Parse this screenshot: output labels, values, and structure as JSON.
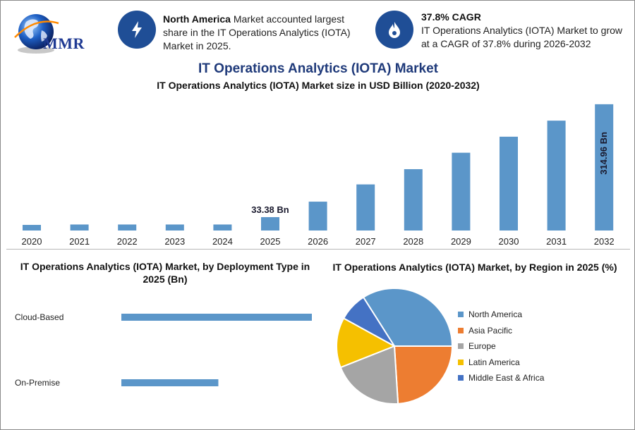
{
  "logo": {
    "text": "MMR"
  },
  "info_boxes": [
    {
      "icon": "lightning-bolt-icon",
      "bold": "North America",
      "text": " Market accounted largest share in the IT Operations Analytics (IOTA) Market in 2025."
    },
    {
      "icon": "flame-drop-icon",
      "bold": "37.8% CAGR",
      "text": "IT Operations Analytics (IOTA) Market to grow at a CAGR of 37.8% during 2026-2032"
    }
  ],
  "colors": {
    "bar": "#5b96c9",
    "icon_bg": "#1f4e96",
    "title": "#1f3a7a"
  },
  "chart_data": [
    {
      "type": "bar",
      "title": "IT Operations Analytics (IOTA) Market",
      "subtitle": "IT Operations Analytics (IOTA) Market size in USD Billion (2020-2032)",
      "categories": [
        "2020",
        "2021",
        "2022",
        "2023",
        "2024",
        "2025",
        "2026",
        "2027",
        "2028",
        "2029",
        "2030",
        "2031",
        "2032"
      ],
      "values": [
        14,
        15,
        15,
        15,
        15,
        33.38,
        72,
        115,
        153,
        194,
        234,
        274,
        314.96
      ],
      "data_labels": [
        {
          "index": 5,
          "text": "33.38 Bn"
        },
        {
          "index": 12,
          "text": "314.96 Bn"
        }
      ],
      "ylim": [
        0,
        320
      ],
      "grid": false
    },
    {
      "type": "bar",
      "orientation": "horizontal",
      "title": "IT Operations Analytics (IOTA) Market, by Deployment Type in 2025 (Bn)",
      "categories": [
        "Cloud-Based",
        "On-Premise"
      ],
      "values": [
        22.0,
        11.2
      ],
      "xlim": [
        0,
        22.0
      ]
    },
    {
      "type": "pie",
      "title": "IT Operations Analytics (IOTA) Market, by Region in 2025 (%)",
      "legend_position": "right",
      "series": [
        {
          "name": "North America",
          "value": 34,
          "color": "#5b96c9"
        },
        {
          "name": "Asia Pacific",
          "value": 24,
          "color": "#ed7d31"
        },
        {
          "name": "Europe",
          "value": 20,
          "color": "#a5a5a5"
        },
        {
          "name": "Latin America",
          "value": 14,
          "color": "#f5c000"
        },
        {
          "name": "Middle East & Africa",
          "value": 8,
          "color": "#4472c4"
        }
      ]
    }
  ]
}
